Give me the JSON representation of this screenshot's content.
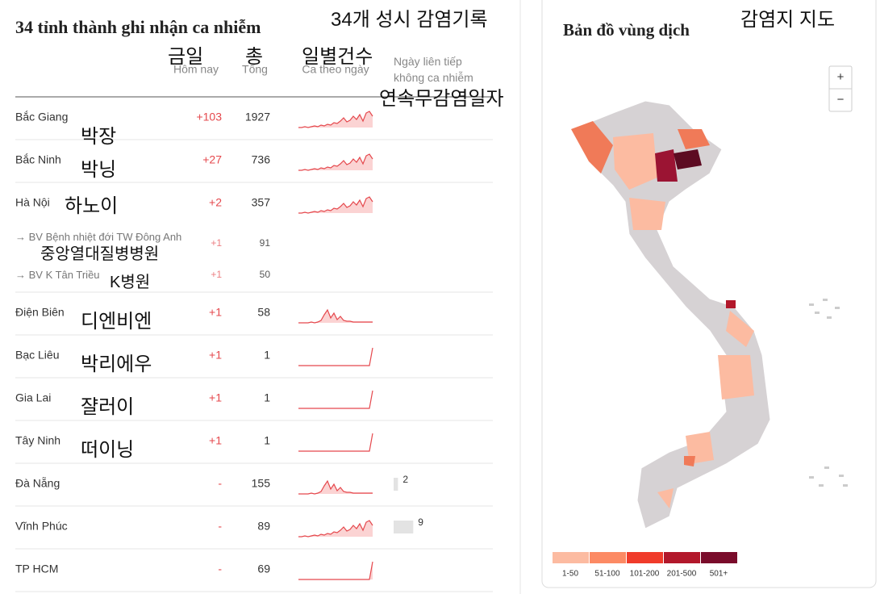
{
  "table": {
    "title": "34 tỉnh thành ghi nhận ca nhiễm",
    "columns": [
      {
        "label": "Hôm nay",
        "ko": "금일"
      },
      {
        "label": "Tổng",
        "ko": "총"
      },
      {
        "label": "Ca theo ngày",
        "ko": "일별건수"
      },
      {
        "label": "Ngày liên tiếp không ca nhiễm",
        "ko": "연속무감염일자"
      }
    ],
    "title_ko": "34개 성시 감염기록",
    "rows": [
      {
        "name": "Bắc Giang",
        "ko": "박장",
        "today": "+103",
        "total": 1927
      },
      {
        "name": "Bắc Ninh",
        "ko": "박닝",
        "today": "+27",
        "total": 736
      },
      {
        "name": "Hà Nội",
        "ko": "하노이",
        "today": "+2",
        "total": 357,
        "sub_rows": [
          {
            "name": "→ BV Bệnh nhiệt đới TW Đông Anh",
            "ko": "중앙열대질병병원",
            "today": "+1",
            "total": 91
          },
          {
            "name": "→ BV K Tân Triều",
            "ko": "K병원",
            "today": "+1",
            "total": 50
          }
        ]
      },
      {
        "name": "Điện Biên",
        "ko": "디엔비엔",
        "today": "+1",
        "total": 58
      },
      {
        "name": "Bạc Liêu",
        "ko": "박리에우",
        "today": "+1",
        "total": 1
      },
      {
        "name": "Gia Lai",
        "ko": "쟐러이",
        "today": "+1",
        "total": 1
      },
      {
        "name": "Tây Ninh",
        "ko": "떠이닝",
        "today": "+1",
        "total": 1
      },
      {
        "name": "Đà Nẵng",
        "today": "-",
        "total": 155,
        "zero_days": 2
      },
      {
        "name": "Vĩnh Phúc",
        "today": "-",
        "total": 89,
        "zero_days": 9
      },
      {
        "name": "TP HCM",
        "today": "-",
        "total": 69
      }
    ]
  },
  "map": {
    "title": "Bản đồ vùng dịch",
    "title_ko": "감염지 지도",
    "zoom_in": "+",
    "zoom_out": "−",
    "legend": [
      {
        "label": "1-50",
        "color": "#fcbba1"
      },
      {
        "label": "51-100",
        "color": "#fc8a64"
      },
      {
        "label": "101-200",
        "color": "#f03b2a"
      },
      {
        "label": "201-500",
        "color": "#b2182b"
      },
      {
        "label": "501+",
        "color": "#7a0c2b"
      }
    ]
  }
}
